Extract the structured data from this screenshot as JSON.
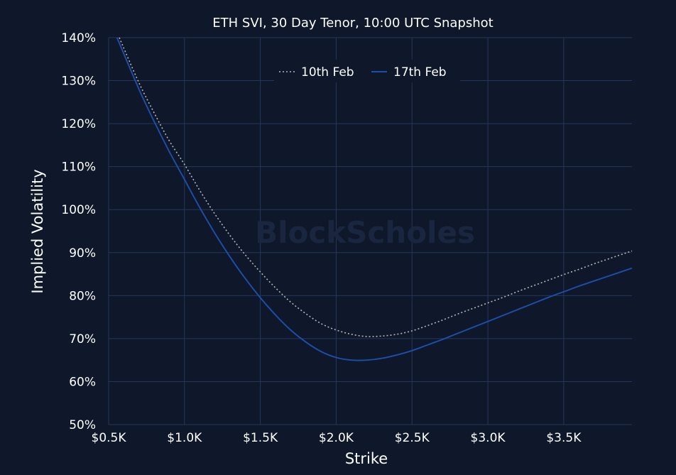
{
  "chart_data": {
    "type": "line",
    "title": "ETH SVI, 30 Day Tenor, 10:00 UTC Snapshot",
    "xlabel": "Strike",
    "ylabel": "Implied Volatility",
    "watermark": "BlockScholes",
    "x_ticks": [
      "$0.5K",
      "$1.0K",
      "$1.5K",
      "$2.0K",
      "$2.5K",
      "$3.0K",
      "$3.5K"
    ],
    "x_tick_values": [
      500,
      1000,
      1500,
      2000,
      2500,
      3000,
      3500
    ],
    "y_ticks": [
      "50%",
      "60%",
      "70%",
      "80%",
      "90%",
      "100%",
      "110%",
      "120%",
      "130%",
      "140%"
    ],
    "y_tick_values": [
      50,
      60,
      70,
      80,
      90,
      100,
      110,
      120,
      130,
      140
    ],
    "xlim": [
      500,
      3950
    ],
    "ylim": [
      50,
      140
    ],
    "grid": true,
    "legend_position": "top-center",
    "background_color": "#0f182b",
    "grid_color": "#26365a",
    "series": [
      {
        "name": "10th Feb",
        "color": "#b5b5b5",
        "style": "dotted",
        "x": [
          570,
          700,
          800,
          900,
          1000,
          1100,
          1200,
          1300,
          1400,
          1500,
          1600,
          1700,
          1800,
          1900,
          2000,
          2100,
          2200,
          2300,
          2400,
          2500,
          2600,
          2700,
          2800,
          2900,
          3000,
          3100,
          3200,
          3300,
          3400,
          3500,
          3600,
          3700,
          3800,
          3950
        ],
        "y": [
          140,
          129.5,
          122.5,
          116,
          110.5,
          104.5,
          99,
          94,
          89.5,
          85.5,
          81.8,
          78.5,
          75.8,
          73.5,
          72,
          71,
          70.5,
          70.6,
          71,
          71.8,
          73,
          74.3,
          75.7,
          77,
          78.3,
          79.6,
          81,
          82.3,
          83.6,
          84.9,
          86.1,
          87.4,
          88.6,
          90.4
        ]
      },
      {
        "name": "17th Feb",
        "color": "#1e4fa8",
        "style": "solid",
        "x": [
          555,
          700,
          800,
          900,
          1000,
          1100,
          1200,
          1300,
          1400,
          1500,
          1600,
          1700,
          1800,
          1900,
          2000,
          2100,
          2200,
          2300,
          2400,
          2500,
          2600,
          2700,
          2800,
          2900,
          3000,
          3100,
          3200,
          3300,
          3400,
          3500,
          3600,
          3700,
          3800,
          3950
        ],
        "y": [
          140,
          128,
          120.5,
          113.5,
          107,
          100.5,
          94.5,
          89,
          84,
          79.5,
          75.5,
          72,
          69.2,
          67,
          65.6,
          65,
          65,
          65.4,
          66.2,
          67.2,
          68.5,
          69.8,
          71.2,
          72.6,
          74,
          75.4,
          76.8,
          78.2,
          79.6,
          80.9,
          82.2,
          83.4,
          84.6,
          86.4
        ]
      }
    ]
  }
}
